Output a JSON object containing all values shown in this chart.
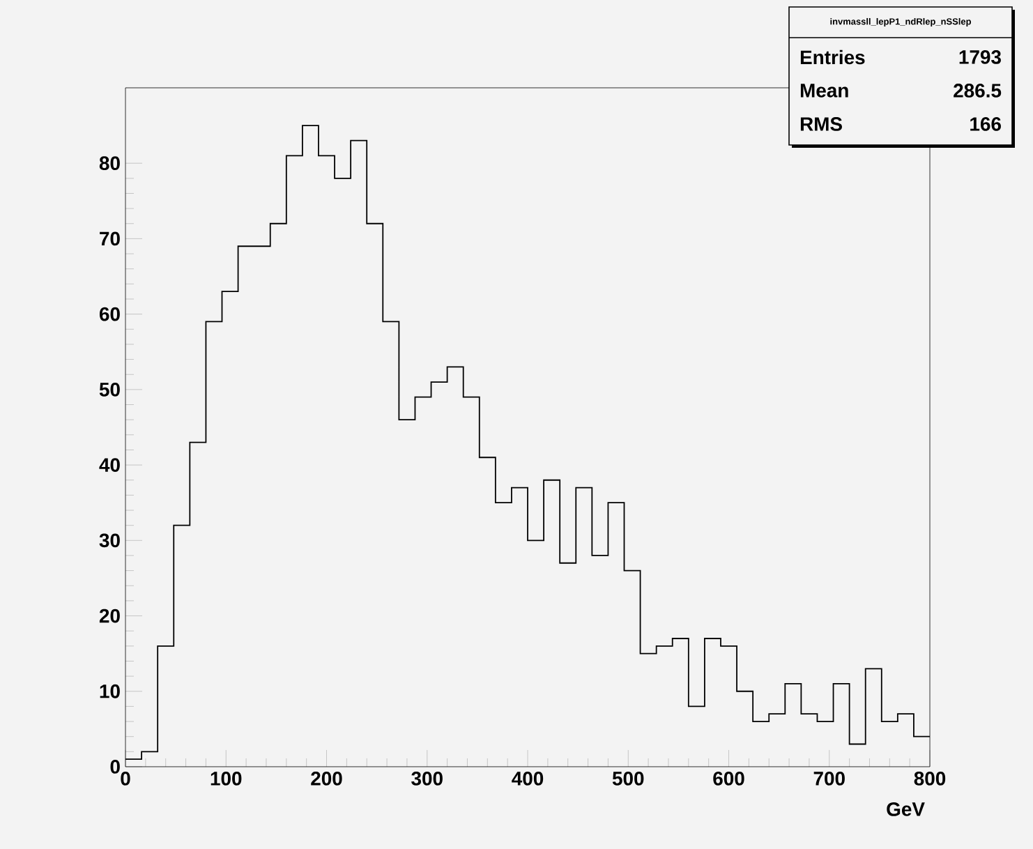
{
  "chart_data": {
    "type": "histogram",
    "title": "invmassll_lepP1_ndRlep_nSSlep",
    "xlabel": "GeV",
    "bins": [
      0,
      16,
      32,
      48,
      64,
      80,
      96,
      112,
      128,
      144,
      160,
      176,
      192,
      208,
      224,
      240,
      256,
      272,
      288,
      304,
      320,
      336,
      352,
      368,
      384,
      400,
      416,
      432,
      448,
      464,
      480,
      496,
      512,
      528,
      544,
      560,
      576,
      592,
      608,
      624,
      640,
      656,
      672,
      688,
      704,
      720,
      736,
      752,
      768,
      784,
      800
    ],
    "values": [
      1,
      2,
      16,
      32,
      43,
      59,
      63,
      69,
      69,
      72,
      81,
      85,
      81,
      78,
      83,
      72,
      59,
      46,
      49,
      51,
      53,
      49,
      41,
      35,
      37,
      30,
      38,
      27,
      37,
      28,
      35,
      26,
      15,
      16,
      17,
      8,
      17,
      16,
      10,
      6,
      7,
      11,
      7,
      6,
      11,
      3,
      13,
      6,
      7,
      4
    ],
    "color": "#000000",
    "xlim": [
      0,
      800
    ],
    "ylim": [
      0,
      90
    ],
    "xticks": [
      0,
      100,
      200,
      300,
      400,
      500,
      600,
      700,
      800
    ],
    "yticks": [
      0,
      10,
      20,
      30,
      40,
      50,
      60,
      70,
      80
    ],
    "annotations": [
      "Entries",
      "1793",
      "Mean",
      "286.5",
      "RMS",
      "166"
    ],
    "grid": false
  }
}
